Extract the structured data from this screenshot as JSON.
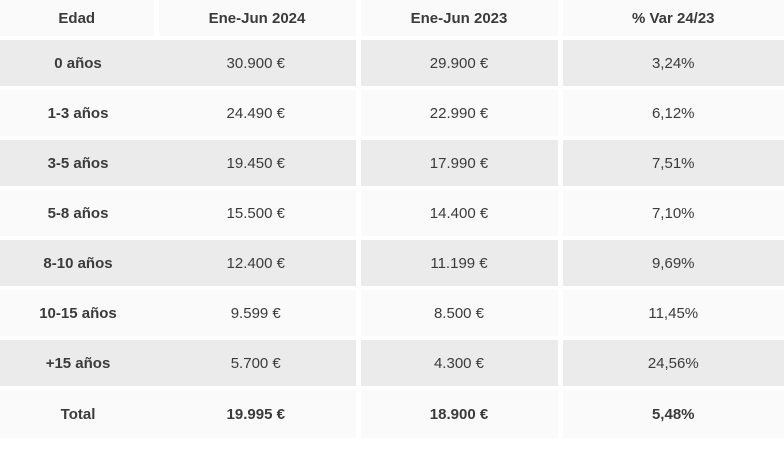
{
  "colors": {
    "row_shade_gray": "#ebebeb",
    "row_shade_light": "#fafafa",
    "gutter_white": "#ffffff",
    "text": "#3b3b3b"
  },
  "table": {
    "columns": [
      "Edad",
      "Ene-Jun 2024",
      "Ene-Jun 2023",
      "% Var 24/23"
    ],
    "rows": [
      {
        "label": "0 años",
        "v2024": "30.900 €",
        "v2023": "29.900 €",
        "variation": "3,24%",
        "bold": false,
        "shade": "gray"
      },
      {
        "label": "1-3 años",
        "v2024": "24.490 €",
        "v2023": "22.990 €",
        "variation": "6,12%",
        "bold": false,
        "shade": "light"
      },
      {
        "label": "3-5 años",
        "v2024": "19.450 €",
        "v2023": "17.990 €",
        "variation": "7,51%",
        "bold": false,
        "shade": "gray"
      },
      {
        "label": "5-8 años",
        "v2024": "15.500 €",
        "v2023": "14.400 €",
        "variation": "7,10%",
        "bold": false,
        "shade": "light"
      },
      {
        "label": "8-10 años",
        "v2024": "12.400 €",
        "v2023": "11.199 €",
        "variation": "9,69%",
        "bold": false,
        "shade": "gray"
      },
      {
        "label": "10-15 años",
        "v2024": "9.599 €",
        "v2023": "8.500 €",
        "variation": "11,45%",
        "bold": false,
        "shade": "light"
      },
      {
        "label": "+15 años",
        "v2024": "5.700 €",
        "v2023": "4.300 €",
        "variation": "24,56%",
        "bold": false,
        "shade": "gray"
      },
      {
        "label": "Total",
        "v2024": "19.995 €",
        "v2023": "18.900 €",
        "variation": "5,48%",
        "bold": true,
        "shade": "light"
      }
    ]
  },
  "chart_data": {
    "type": "table",
    "title": "",
    "columns": [
      "Edad",
      "Ene-Jun 2024",
      "Ene-Jun 2023",
      "% Var 24/23"
    ],
    "rows": [
      [
        "0 años",
        "30.900 €",
        "29.900 €",
        "3,24%"
      ],
      [
        "1-3 años",
        "24.490 €",
        "22.990 €",
        "6,12%"
      ],
      [
        "3-5 años",
        "19.450 €",
        "17.990 €",
        "7,51%"
      ],
      [
        "5-8 años",
        "15.500 €",
        "14.400 €",
        "7,10%"
      ],
      [
        "8-10 años",
        "12.400 €",
        "11.199 €",
        "9,69%"
      ],
      [
        "10-15 años",
        "9.599 €",
        "8.500 €",
        "11,45%"
      ],
      [
        "+15 años",
        "5.700 €",
        "4.300 €",
        "24,56%"
      ],
      [
        "Total",
        "19.995 €",
        "18.900 €",
        "5,48%"
      ]
    ],
    "categories": [
      "0 años",
      "1-3 años",
      "3-5 años",
      "5-8 años",
      "8-10 años",
      "10-15 años",
      "+15 años",
      "Total"
    ],
    "series": [
      {
        "name": "Ene-Jun 2024",
        "values": [
          30900,
          24490,
          19450,
          15500,
          12400,
          9599,
          5700,
          19995
        ],
        "unit": "€"
      },
      {
        "name": "Ene-Jun 2023",
        "values": [
          29900,
          22990,
          17990,
          14400,
          11199,
          8500,
          4300,
          18900
        ],
        "unit": "€"
      },
      {
        "name": "% Var 24/23",
        "values": [
          3.24,
          6.12,
          7.51,
          7.1,
          9.69,
          11.45,
          24.56,
          5.48
        ],
        "unit": "%"
      }
    ]
  }
}
